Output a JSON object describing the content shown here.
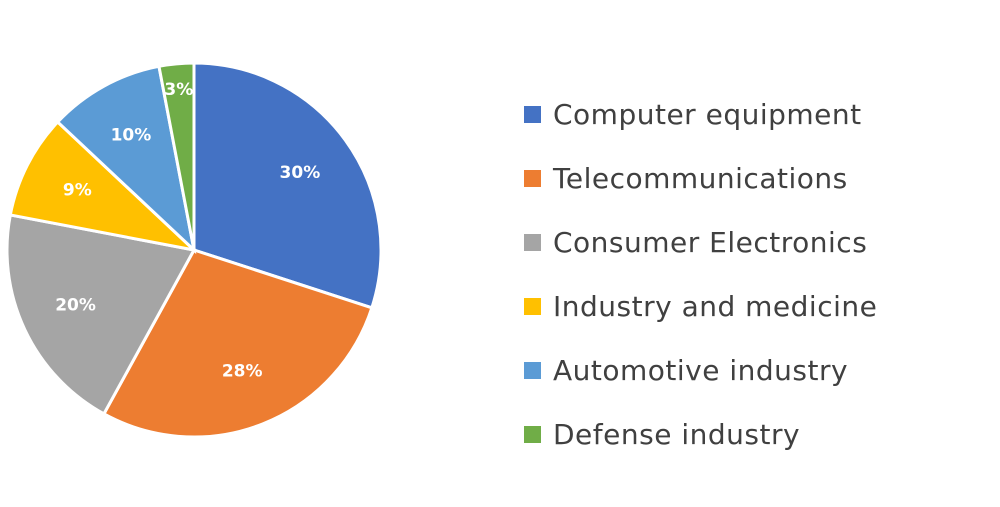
{
  "chart_data": {
    "type": "pie",
    "title": "",
    "categories": [
      "Computer equipment",
      "Telecommunications",
      "Consumer Electronics",
      "Industry and medicine",
      "Automotive industry",
      "Defense industry"
    ],
    "values": [
      30,
      28,
      20,
      9,
      10,
      3
    ],
    "value_labels": [
      "30%",
      "28%",
      "20%",
      "9%",
      "10%",
      "3%"
    ],
    "colors": [
      "#4472C4",
      "#ED7D31",
      "#A5A5A5",
      "#FFC000",
      "#5B9BD5",
      "#70AD47"
    ],
    "start": "12 o'clock",
    "direction": "clockwise",
    "legend_position": "right"
  }
}
